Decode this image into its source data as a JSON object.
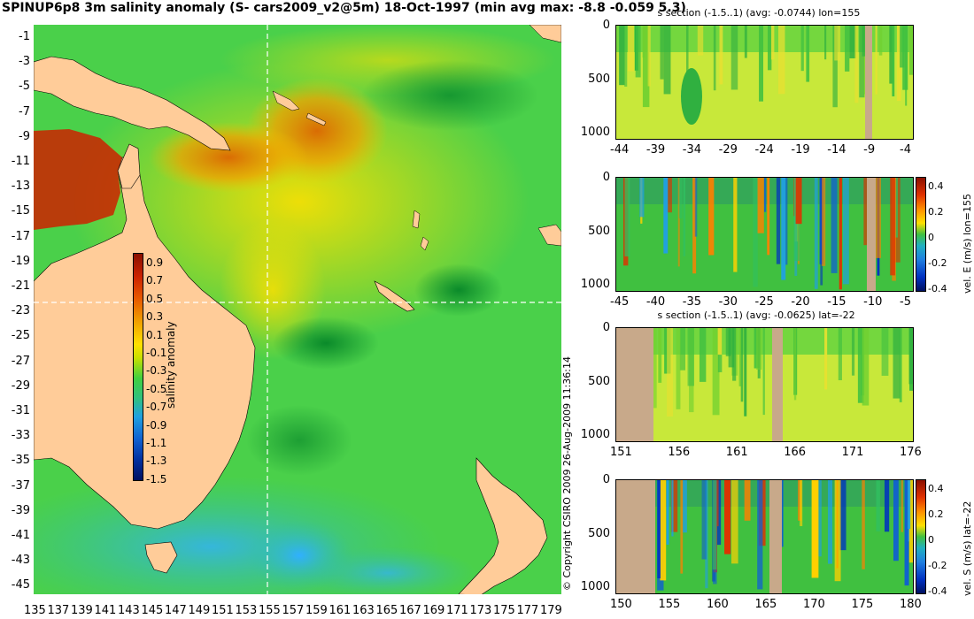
{
  "title": "SPINUP6p8 3m salinity anomaly (S- cars2009_v2@5m) 18-Oct-1997 (min avg max: -8.8 -0.059 5.3)",
  "copyright": "© Copyright CSIRO 2009   26-Aug-2009 11:36:14",
  "map": {
    "lat_labels": [
      "-1",
      "-3",
      "-5",
      "-7",
      "-9",
      "-11",
      "-13",
      "-15",
      "-17",
      "-19",
      "-21",
      "-23",
      "-25",
      "-27",
      "-29",
      "-31",
      "-33",
      "-35",
      "-37",
      "-39",
      "-41",
      "-43",
      "-45"
    ],
    "lon_labels": [
      "135",
      "137",
      "139",
      "141",
      "143",
      "145",
      "147",
      "149",
      "151",
      "153",
      "155",
      "157",
      "159",
      "161",
      "163",
      "165",
      "167",
      "169",
      "171",
      "173",
      "175",
      "177",
      "179"
    ],
    "colorbar": {
      "label": "salinity anomaly",
      "ticks": [
        "0.9",
        "0.7",
        "0.5",
        "0.3",
        "0.1",
        "-0.1",
        "-0.3",
        "-0.5",
        "-0.7",
        "-0.9",
        "-1.1",
        "-1.3",
        "-1.5"
      ]
    },
    "crosshair": {
      "lon": 155,
      "lat": -22
    }
  },
  "sections": [
    {
      "title": "s section (-1.5..1) (avg: -0.0744) lon=155",
      "side_label": "",
      "y_ticks": [
        "0",
        "500",
        "1000"
      ],
      "x_ticks": [
        "-44",
        "-39",
        "-34",
        "-29",
        "-24",
        "-19",
        "-14",
        "-9",
        "-4"
      ],
      "colorbar_ticks": []
    },
    {
      "title": "",
      "side_label": "vel. E (m/s) lon=155",
      "y_ticks": [
        "0",
        "500",
        "1000"
      ],
      "x_ticks": [
        "-45",
        "-40",
        "-35",
        "-30",
        "-25",
        "-20",
        "-15",
        "-10",
        "-5"
      ],
      "colorbar_ticks": [
        "0.4",
        "0.2",
        "0",
        "-0.2",
        "-0.4"
      ]
    },
    {
      "title": "s section (-1.5..1) (avg: -0.0625) lat=-22",
      "side_label": "",
      "y_ticks": [
        "0",
        "500",
        "1000"
      ],
      "x_ticks": [
        "151",
        "156",
        "161",
        "166",
        "171",
        "176"
      ],
      "colorbar_ticks": []
    },
    {
      "title": "",
      "side_label": "vel. S (m/s) lat=-22",
      "y_ticks": [
        "0",
        "500",
        "1000"
      ],
      "x_ticks": [
        "150",
        "155",
        "160",
        "165",
        "170",
        "175",
        "180"
      ],
      "colorbar_ticks": [
        "0.4",
        "0.2",
        "0",
        "-0.2",
        "-0.4"
      ]
    }
  ],
  "colors": {
    "land": "#ffcc99",
    "section_land": "#c8a98a",
    "ocean_base": "#33cc33",
    "crosshair": "#ffffff"
  }
}
